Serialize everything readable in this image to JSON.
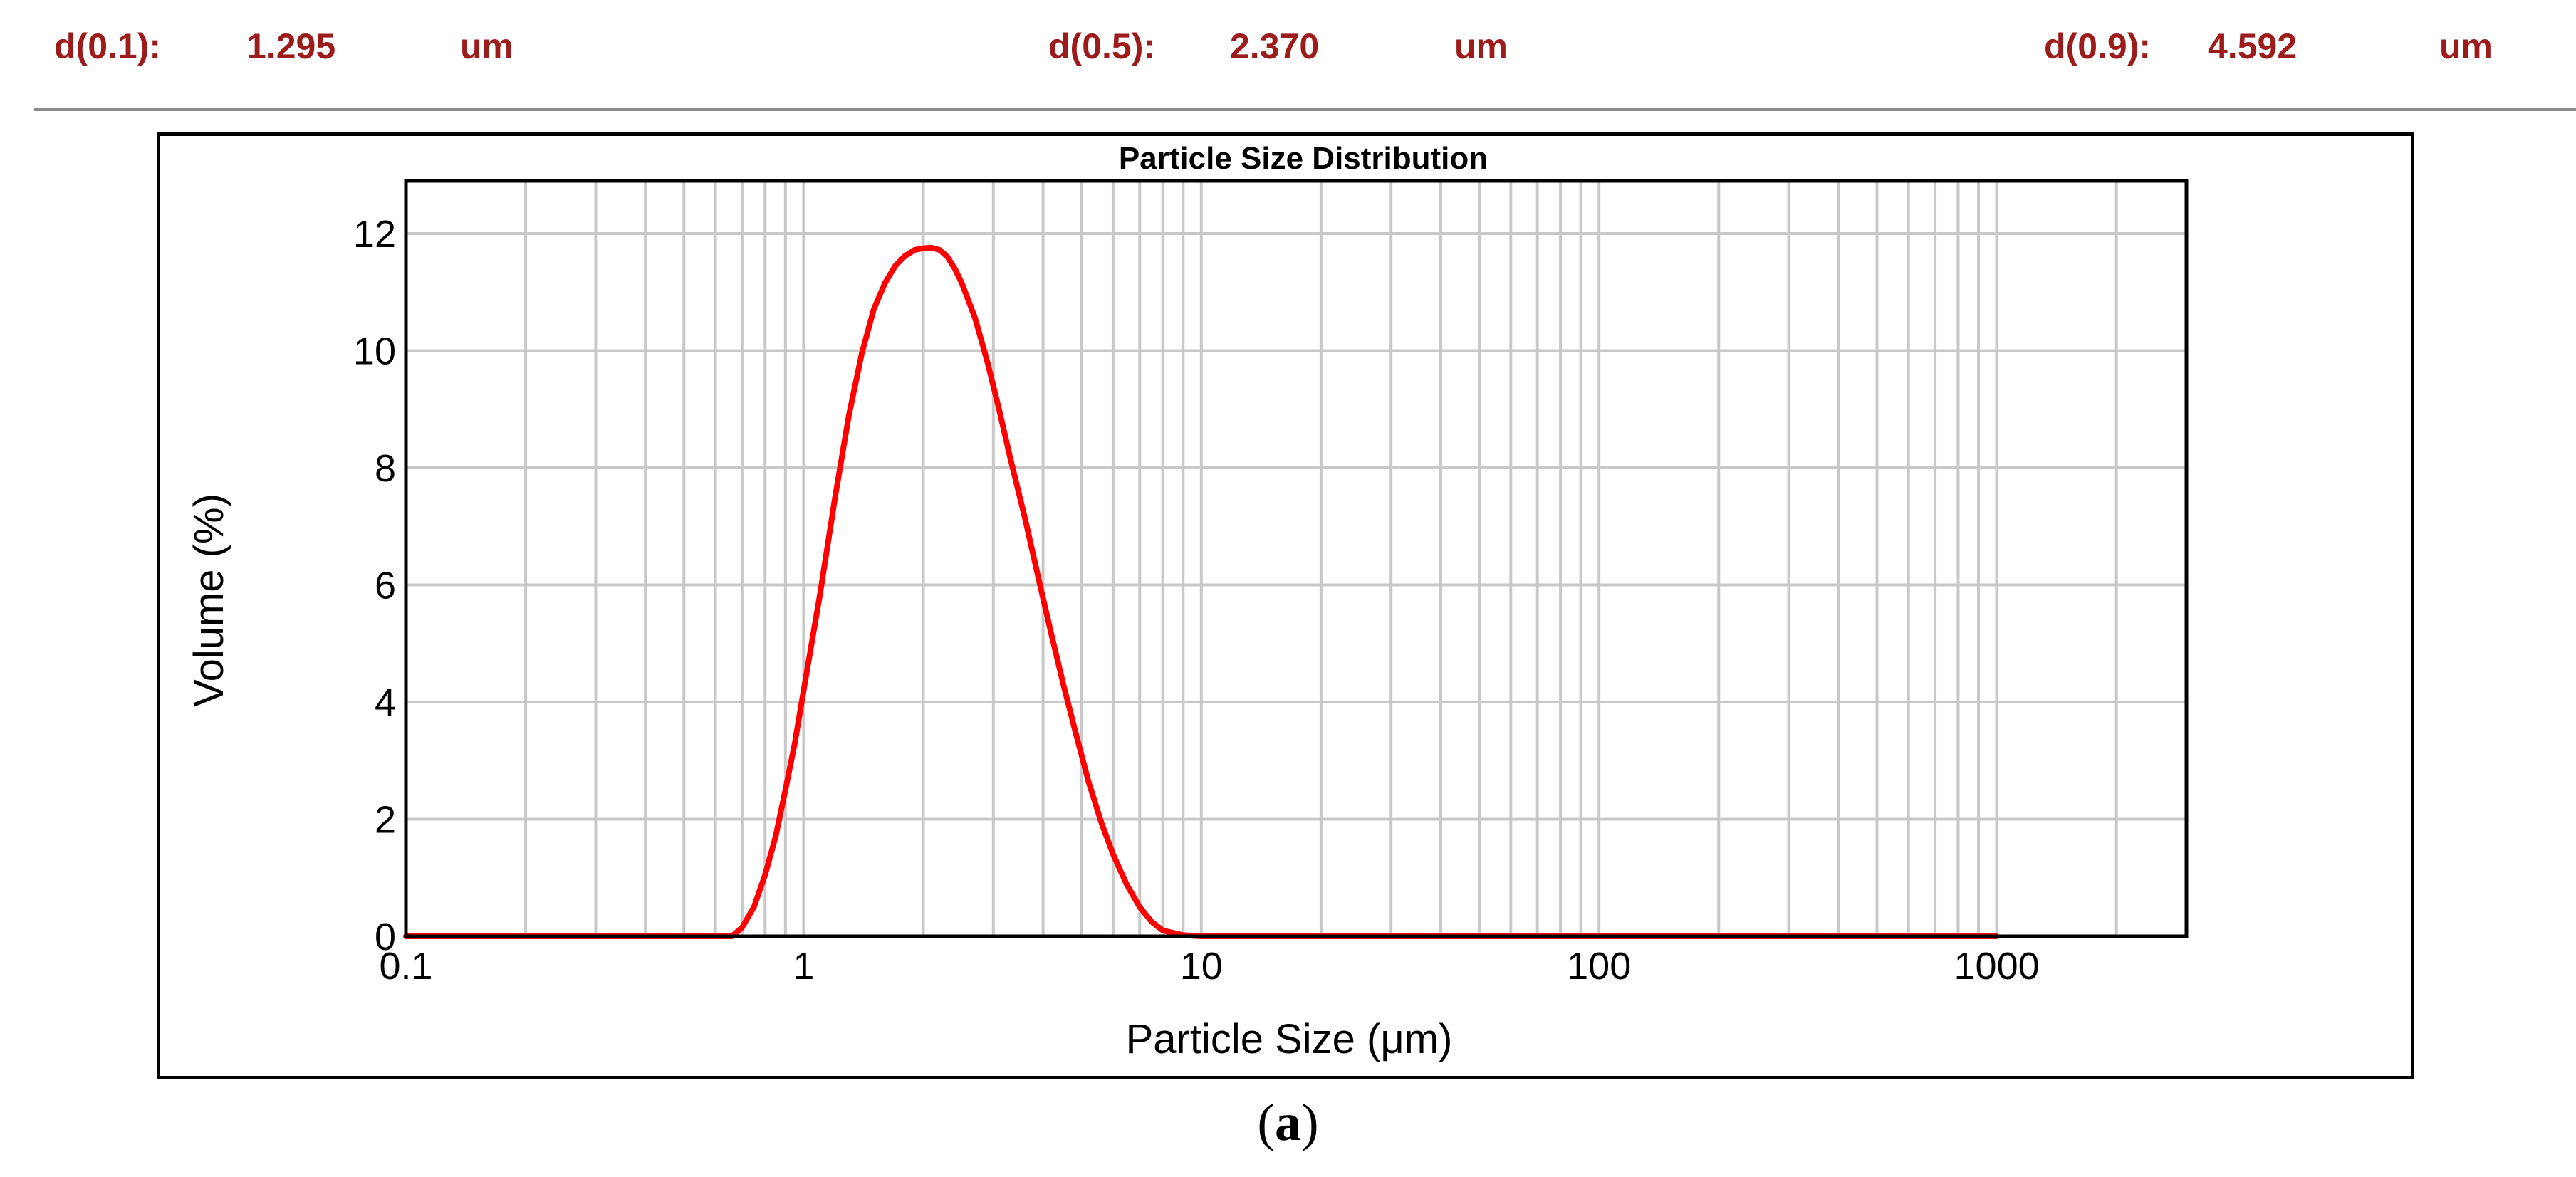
{
  "stats": [
    {
      "label": "d(0.1):",
      "value": "1.295",
      "unit": "um"
    },
    {
      "label": "d(0.5):",
      "value": "2.370",
      "unit": "um"
    },
    {
      "label": "d(0.9):",
      "value": "4.592",
      "unit": "um"
    }
  ],
  "caption": {
    "open": "(",
    "letter": "a",
    "close": ")"
  },
  "colors": {
    "stats_text": "#9c1c1c",
    "curve": "#ff0000",
    "grid": "#c8c8c8"
  },
  "chart_data": {
    "type": "line",
    "title": "Particle Size Distribution",
    "xlabel": "Particle Size (μm)",
    "ylabel": "Volume (%)",
    "x_scale": "log",
    "xlim": [
      0.1,
      3000
    ],
    "ylim": [
      0,
      12.9
    ],
    "x_ticks": [
      0.1,
      1,
      10,
      100,
      1000
    ],
    "x_tick_labels": [
      "0.1",
      "1",
      "10",
      "100",
      "1000"
    ],
    "y_ticks": [
      0,
      2,
      4,
      6,
      8,
      10,
      12
    ],
    "y_tick_labels": [
      "0",
      "2",
      "4",
      "6",
      "8",
      "10",
      "12"
    ],
    "grid": true,
    "series": [
      {
        "x": [
          0.1,
          0.2,
          0.4,
          0.66,
          0.7,
          0.75,
          0.8,
          0.85,
          0.9,
          0.95,
          1.0,
          1.1,
          1.2,
          1.3,
          1.4,
          1.5,
          1.6,
          1.7,
          1.8,
          1.9,
          2.0,
          2.1,
          2.2,
          2.3,
          2.4,
          2.5,
          2.7,
          2.9,
          3.1,
          3.3,
          3.6,
          3.9,
          4.2,
          4.5,
          4.8,
          5.2,
          5.6,
          6.0,
          6.5,
          7.0,
          7.5,
          8.0,
          9.0,
          10.0,
          1000
        ],
        "y": [
          0,
          0,
          0,
          0.0,
          0.15,
          0.5,
          1.05,
          1.7,
          2.5,
          3.3,
          4.2,
          5.85,
          7.5,
          8.9,
          9.95,
          10.7,
          11.15,
          11.45,
          11.62,
          11.72,
          11.75,
          11.76,
          11.72,
          11.6,
          11.4,
          11.15,
          10.55,
          9.8,
          9.0,
          8.2,
          7.15,
          6.1,
          5.15,
          4.3,
          3.55,
          2.65,
          1.95,
          1.4,
          0.88,
          0.5,
          0.25,
          0.1,
          0.02,
          0,
          0
        ]
      }
    ]
  }
}
